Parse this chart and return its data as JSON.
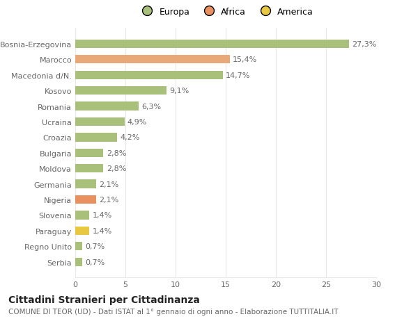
{
  "categories": [
    "Serbia",
    "Regno Unito",
    "Paraguay",
    "Slovenia",
    "Nigeria",
    "Germania",
    "Moldova",
    "Bulgaria",
    "Croazia",
    "Ucraina",
    "Romania",
    "Kosovo",
    "Macedonia d/N.",
    "Marocco",
    "Bosnia-Erzegovina"
  ],
  "values": [
    0.7,
    0.7,
    1.4,
    1.4,
    2.1,
    2.1,
    2.8,
    2.8,
    4.2,
    4.9,
    6.3,
    9.1,
    14.7,
    15.4,
    27.3
  ],
  "labels": [
    "0,7%",
    "0,7%",
    "1,4%",
    "1,4%",
    "2,1%",
    "2,1%",
    "2,8%",
    "2,8%",
    "4,2%",
    "4,9%",
    "6,3%",
    "9,1%",
    "14,7%",
    "15,4%",
    "27,3%"
  ],
  "colors": [
    "#a8c07a",
    "#a8c07a",
    "#e8c840",
    "#a8c07a",
    "#e89060",
    "#a8c07a",
    "#a8c07a",
    "#a8c07a",
    "#a8c07a",
    "#a8c07a",
    "#a8c07a",
    "#a8c07a",
    "#a8c07a",
    "#e8a878",
    "#a8c07a"
  ],
  "legend_labels": [
    "Europa",
    "Africa",
    "America"
  ],
  "legend_colors": [
    "#a8c07a",
    "#e89060",
    "#e8c840"
  ],
  "title": "Cittadini Stranieri per Cittadinanza",
  "subtitle": "COMUNE DI TEOR (UD) - Dati ISTAT al 1° gennaio di ogni anno - Elaborazione TUTTITALIA.IT",
  "xlim": [
    0,
    30
  ],
  "xticks": [
    0,
    5,
    10,
    15,
    20,
    25,
    30
  ],
  "background_color": "#ffffff",
  "grid_color": "#e8e8e8",
  "text_color": "#666666",
  "label_fontsize": 8,
  "title_fontsize": 10,
  "subtitle_fontsize": 7.5,
  "ytick_fontsize": 8,
  "xtick_fontsize": 8
}
